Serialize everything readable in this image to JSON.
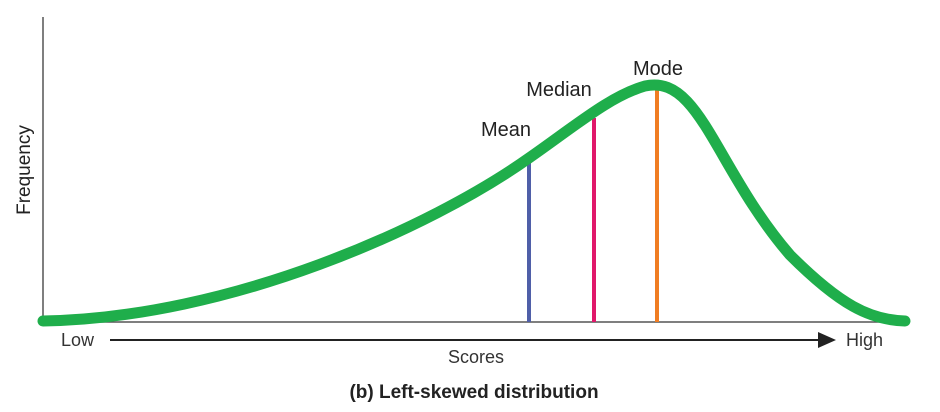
{
  "figure": {
    "ylabel": "Frequency",
    "xlabel": "Scores",
    "x_low": "Low",
    "x_high": "High",
    "caption": "(b) Left-skewed distribution"
  },
  "markers": {
    "mean": {
      "label": "Mean",
      "color": "#4f5fa8"
    },
    "median": {
      "label": "Median",
      "color": "#e0176a"
    },
    "mode": {
      "label": "Mode",
      "color": "#f07d22"
    }
  },
  "colors": {
    "curve": "#1fae4b",
    "axis": "#555555",
    "arrow": "#222222"
  }
}
